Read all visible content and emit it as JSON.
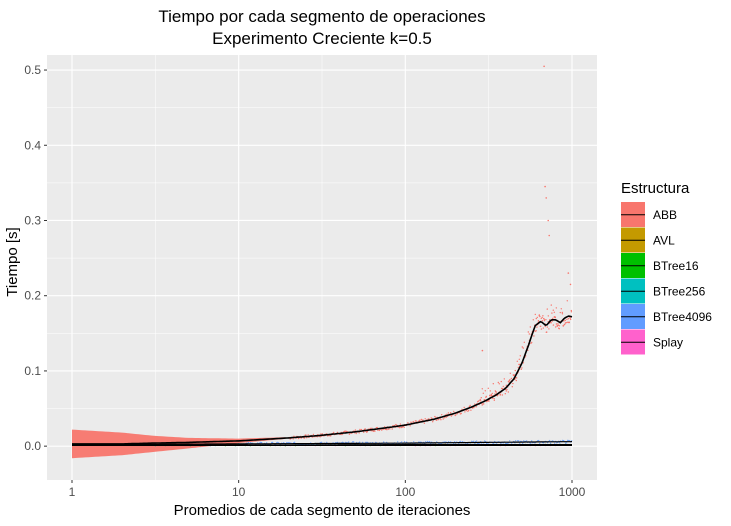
{
  "chart_data": {
    "type": "scatter",
    "title": "Tiempo por cada segmento de operaciones",
    "subtitle": "Experimento Creciente k=0.5",
    "xlabel": "Promedios de cada segmento de iteraciones",
    "ylabel": "Tiempo [s]",
    "x_scale": "log10",
    "xlim": [
      1,
      1000
    ],
    "ylim": [
      -0.045,
      0.52
    ],
    "x_ticks": [
      1,
      10,
      100,
      1000
    ],
    "x_tick_labels": [
      "1",
      "10",
      "100",
      "1000"
    ],
    "y_ticks": [
      0.0,
      0.1,
      0.2,
      0.3,
      0.4,
      0.5
    ],
    "y_tick_labels": [
      "0.0",
      "0.1",
      "0.2",
      "0.3",
      "0.4",
      "0.5"
    ],
    "grid": true,
    "legend": {
      "title": "Estructura",
      "position": "right",
      "entries": [
        "ABB",
        "AVL",
        "BTree16",
        "BTree256",
        "BTree4096",
        "Splay"
      ]
    },
    "colors": {
      "ABB": "#f8766d",
      "AVL": "#c49a00",
      "BTree16": "#00c000",
      "BTree256": "#00c0c0",
      "BTree4096": "#619cff",
      "Splay": "#ff61cc",
      "panel": "#ebebeb",
      "grid": "#ffffff",
      "smooth_line": "#000000"
    },
    "series": [
      {
        "name": "ABB",
        "x": [
          1,
          2,
          3,
          5,
          10,
          20,
          30,
          50,
          80,
          100,
          150,
          200,
          250,
          300,
          350,
          400,
          450,
          500,
          550,
          600,
          650,
          700,
          750,
          800,
          850,
          900,
          950,
          1000
        ],
        "y": [
          0.003,
          0.003,
          0.004,
          0.005,
          0.007,
          0.011,
          0.014,
          0.019,
          0.025,
          0.028,
          0.036,
          0.044,
          0.052,
          0.06,
          0.068,
          0.077,
          0.09,
          0.11,
          0.135,
          0.16,
          0.166,
          0.16,
          0.168,
          0.168,
          0.164,
          0.17,
          0.173,
          0.172
        ],
        "smooth_band": [
          [
            1,
            -0.016,
            0.022
          ],
          [
            2,
            -0.012,
            0.018
          ],
          [
            3,
            -0.008,
            0.014
          ],
          [
            5,
            -0.003,
            0.011
          ],
          [
            10,
            0.004,
            0.01
          ],
          [
            20,
            0.01,
            0.012
          ],
          [
            1000,
            0.17,
            0.174
          ]
        ]
      },
      {
        "name": "AVL",
        "x": [
          1,
          10,
          100,
          1000
        ],
        "y": [
          0.001,
          0.001,
          0.002,
          0.002
        ]
      },
      {
        "name": "BTree16",
        "x": [
          1,
          10,
          100,
          1000
        ],
        "y": [
          0.001,
          0.001,
          0.001,
          0.002
        ]
      },
      {
        "name": "BTree256",
        "x": [
          1,
          10,
          100,
          1000
        ],
        "y": [
          0.001,
          0.001,
          0.002,
          0.002
        ]
      },
      {
        "name": "BTree4096",
        "x": [
          1,
          10,
          100,
          300,
          1000
        ],
        "y": [
          0.002,
          0.003,
          0.004,
          0.005,
          0.006
        ]
      },
      {
        "name": "Splay",
        "x": [
          1,
          10,
          100,
          1000
        ],
        "y": [
          0.001,
          0.001,
          0.001,
          0.001
        ]
      }
    ],
    "annotations": {
      "ABB_outliers": [
        [
          680,
          0.505
        ],
        [
          690,
          0.345
        ],
        [
          700,
          0.33
        ],
        [
          720,
          0.3
        ],
        [
          730,
          0.28
        ],
        [
          290,
          0.127
        ],
        [
          950,
          0.23
        ],
        [
          980,
          0.215
        ]
      ]
    }
  }
}
